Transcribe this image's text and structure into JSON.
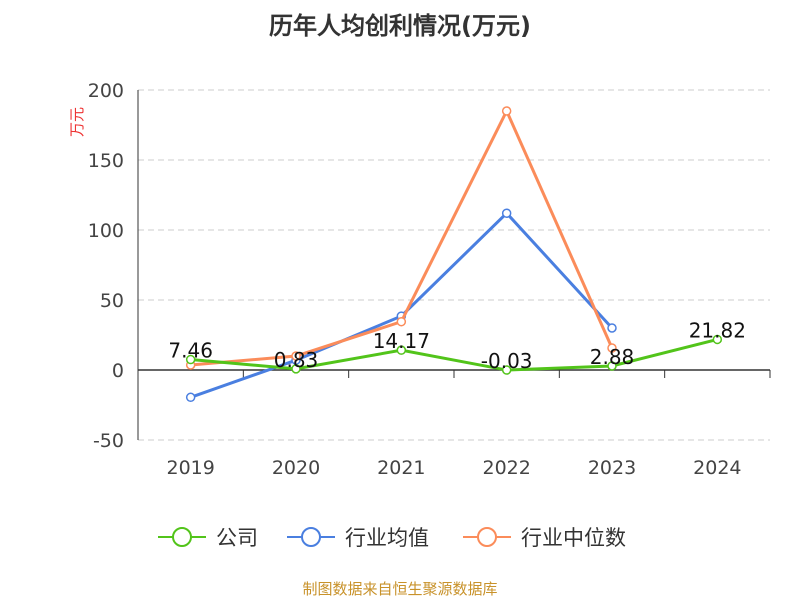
{
  "chart_data": {
    "type": "line",
    "title": "历年人均创利情况(万元)",
    "ylabel": "万元",
    "categories": [
      "2019",
      "2020",
      "2021",
      "2022",
      "2023",
      "2024"
    ],
    "ylim": [
      -50,
      200
    ],
    "yticks": [
      -50,
      0,
      50,
      100,
      150,
      200
    ],
    "grid": true,
    "legend_position": "bottom",
    "series": [
      {
        "name": "公司",
        "color": "#52c41a",
        "values": [
          7.46,
          0.83,
          14.17,
          -0.03,
          2.88,
          21.82
        ],
        "labels": [
          "7.46",
          "0.83",
          "14.17",
          "-0.03",
          "2.88",
          "21.82"
        ]
      },
      {
        "name": "行业均值",
        "color": "#4a7fe0",
        "values": [
          -19.5,
          7,
          38.5,
          112,
          30,
          null
        ]
      },
      {
        "name": "行业中位数",
        "color": "#fb8c5a",
        "values": [
          3.6,
          10,
          34.5,
          185,
          15.7,
          null
        ]
      }
    ]
  },
  "source": "制图数据来自恒生聚源数据库"
}
